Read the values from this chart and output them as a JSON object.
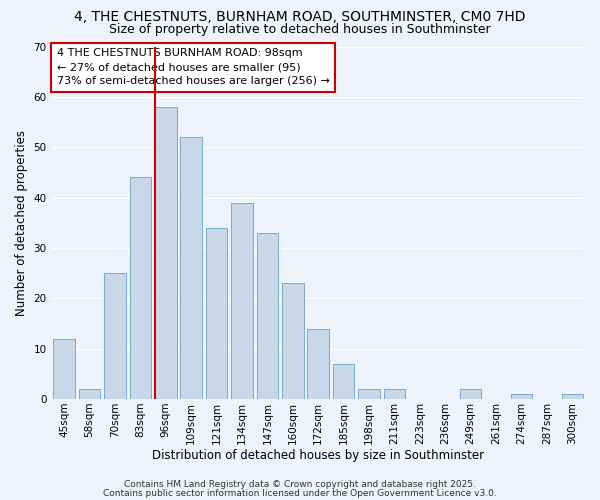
{
  "title": "4, THE CHESTNUTS, BURNHAM ROAD, SOUTHMINSTER, CM0 7HD",
  "subtitle": "Size of property relative to detached houses in Southminster",
  "xlabel": "Distribution of detached houses by size in Southminster",
  "ylabel": "Number of detached properties",
  "bar_labels": [
    "45sqm",
    "58sqm",
    "70sqm",
    "83sqm",
    "96sqm",
    "109sqm",
    "121sqm",
    "134sqm",
    "147sqm",
    "160sqm",
    "172sqm",
    "185sqm",
    "198sqm",
    "211sqm",
    "223sqm",
    "236sqm",
    "249sqm",
    "261sqm",
    "274sqm",
    "287sqm",
    "300sqm"
  ],
  "bar_values": [
    12,
    2,
    25,
    44,
    58,
    52,
    34,
    39,
    33,
    23,
    14,
    7,
    2,
    2,
    0,
    0,
    2,
    0,
    1,
    0,
    1
  ],
  "bar_color": "#c8d8e8",
  "bar_edge_color": "#7aaad0",
  "vline_bar_index": 4,
  "vline_color": "#cc0000",
  "ylim": [
    0,
    70
  ],
  "yticks": [
    0,
    10,
    20,
    30,
    40,
    50,
    60,
    70
  ],
  "annotation_title": "4 THE CHESTNUTS BURNHAM ROAD: 98sqm",
  "annotation_line2": "← 27% of detached houses are smaller (95)",
  "annotation_line3": "73% of semi-detached houses are larger (256) →",
  "footer_line1": "Contains HM Land Registry data © Crown copyright and database right 2025.",
  "footer_line2": "Contains public sector information licensed under the Open Government Licence v3.0.",
  "background_color": "#eef2fb",
  "grid_color": "#ffffff",
  "title_fontsize": 10,
  "subtitle_fontsize": 9,
  "annotation_fontsize": 8,
  "axis_label_fontsize": 8.5,
  "tick_fontsize": 7.5,
  "footer_fontsize": 6.5
}
